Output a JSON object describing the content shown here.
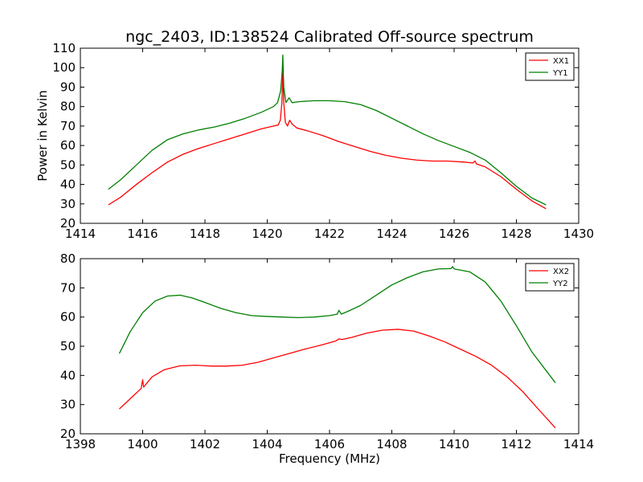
{
  "chart_data": [
    {
      "type": "line",
      "title": "ngc_2403, ID:138524 Calibrated Off-source spectrum",
      "xlabel": "",
      "ylabel": "Power in Kelvin",
      "xlim": [
        1414,
        1430
      ],
      "ylim": [
        20,
        110
      ],
      "xticks": [
        "1414",
        "1416",
        "1418",
        "1420",
        "1422",
        "1424",
        "1426",
        "1428",
        "1430"
      ],
      "yticks": [
        "20",
        "30",
        "40",
        "50",
        "60",
        "70",
        "80",
        "90",
        "100",
        "110"
      ],
      "legend_position": "top-right",
      "grid": false,
      "series": [
        {
          "name": "XX1",
          "color": "#ff0000",
          "points": [
            [
              1414.9,
              29.5
            ],
            [
              1415.3,
              33.5
            ],
            [
              1415.8,
              40
            ],
            [
              1416.3,
              46
            ],
            [
              1416.8,
              51.5
            ],
            [
              1417.3,
              55.5
            ],
            [
              1417.8,
              58.5
            ],
            [
              1418.3,
              61
            ],
            [
              1418.8,
              63.5
            ],
            [
              1419.3,
              66
            ],
            [
              1419.8,
              68.5
            ],
            [
              1420.2,
              70
            ],
            [
              1420.35,
              70.5
            ],
            [
              1420.42,
              73
            ],
            [
              1420.47,
              82
            ],
            [
              1420.5,
              98
            ],
            [
              1420.53,
              82
            ],
            [
              1420.58,
              72
            ],
            [
              1420.65,
              70
            ],
            [
              1420.72,
              73
            ],
            [
              1420.8,
              71
            ],
            [
              1420.95,
              69
            ],
            [
              1421.3,
              67.5
            ],
            [
              1421.8,
              65
            ],
            [
              1422.3,
              62
            ],
            [
              1422.8,
              59.5
            ],
            [
              1423.3,
              57
            ],
            [
              1423.8,
              55
            ],
            [
              1424.3,
              53.5
            ],
            [
              1424.8,
              52.5
            ],
            [
              1425.3,
              52
            ],
            [
              1425.8,
              52
            ],
            [
              1426.3,
              51.5
            ],
            [
              1426.6,
              51
            ],
            [
              1426.67,
              52
            ],
            [
              1426.72,
              50.5
            ],
            [
              1427.0,
              49
            ],
            [
              1427.5,
              44
            ],
            [
              1428.0,
              37.5
            ],
            [
              1428.5,
              31.5
            ],
            [
              1428.95,
              27.5
            ]
          ]
        },
        {
          "name": "YY1",
          "color": "#008000",
          "points": [
            [
              1414.9,
              37.5
            ],
            [
              1415.3,
              42.5
            ],
            [
              1415.8,
              50
            ],
            [
              1416.3,
              57.5
            ],
            [
              1416.8,
              63
            ],
            [
              1417.3,
              66
            ],
            [
              1417.8,
              68
            ],
            [
              1418.3,
              69.5
            ],
            [
              1418.8,
              71.5
            ],
            [
              1419.3,
              74
            ],
            [
              1419.8,
              77
            ],
            [
              1420.2,
              80
            ],
            [
              1420.33,
              82
            ],
            [
              1420.43,
              88
            ],
            [
              1420.48,
              98
            ],
            [
              1420.5,
              106.5
            ],
            [
              1420.53,
              90
            ],
            [
              1420.6,
              82
            ],
            [
              1420.7,
              84.5
            ],
            [
              1420.8,
              82
            ],
            [
              1421.0,
              82.5
            ],
            [
              1421.5,
              83
            ],
            [
              1422.0,
              83
            ],
            [
              1422.5,
              82.5
            ],
            [
              1423.0,
              81
            ],
            [
              1423.5,
              78
            ],
            [
              1424.0,
              74
            ],
            [
              1424.5,
              70
            ],
            [
              1425.0,
              66
            ],
            [
              1425.5,
              62.5
            ],
            [
              1426.0,
              59.5
            ],
            [
              1426.5,
              56.5
            ],
            [
              1427.0,
              52.5
            ],
            [
              1427.5,
              46
            ],
            [
              1428.0,
              39
            ],
            [
              1428.5,
              33
            ],
            [
              1428.95,
              29.5
            ]
          ]
        }
      ]
    },
    {
      "type": "line",
      "title": "",
      "xlabel": "Frequency (MHz)",
      "ylabel": "",
      "xlim": [
        1398,
        1414
      ],
      "ylim": [
        20,
        80
      ],
      "xticks": [
        "1398",
        "1400",
        "1402",
        "1404",
        "1406",
        "1408",
        "1410",
        "1412",
        "1414"
      ],
      "yticks": [
        "20",
        "30",
        "40",
        "50",
        "60",
        "70",
        "80"
      ],
      "legend_position": "top-right",
      "grid": false,
      "series": [
        {
          "name": "XX2",
          "color": "#ff0000",
          "points": [
            [
              1399.25,
              28.5
            ],
            [
              1399.6,
              32
            ],
            [
              1399.95,
              35.5
            ],
            [
              1400.0,
              38.5
            ],
            [
              1400.03,
              36
            ],
            [
              1400.3,
              39.5
            ],
            [
              1400.7,
              42
            ],
            [
              1401.2,
              43.3
            ],
            [
              1401.7,
              43.5
            ],
            [
              1402.2,
              43.2
            ],
            [
              1402.7,
              43.2
            ],
            [
              1403.2,
              43.5
            ],
            [
              1403.7,
              44.5
            ],
            [
              1404.2,
              46
            ],
            [
              1404.7,
              47.5
            ],
            [
              1405.2,
              49
            ],
            [
              1405.7,
              50.3
            ],
            [
              1406.2,
              51.8
            ],
            [
              1406.3,
              52.5
            ],
            [
              1406.4,
              52.3
            ],
            [
              1406.7,
              53
            ],
            [
              1407.2,
              54.5
            ],
            [
              1407.7,
              55.5
            ],
            [
              1408.2,
              55.8
            ],
            [
              1408.7,
              55.2
            ],
            [
              1409.2,
              53.5
            ],
            [
              1409.7,
              51.5
            ],
            [
              1410.2,
              49
            ],
            [
              1410.7,
              46.5
            ],
            [
              1411.2,
              43.5
            ],
            [
              1411.7,
              39.5
            ],
            [
              1412.2,
              34.5
            ],
            [
              1412.7,
              28.5
            ],
            [
              1413.25,
              22
            ]
          ]
        },
        {
          "name": "YY2",
          "color": "#008000",
          "points": [
            [
              1399.25,
              47.5
            ],
            [
              1399.6,
              55
            ],
            [
              1400.0,
              61.5
            ],
            [
              1400.4,
              65.5
            ],
            [
              1400.8,
              67.2
            ],
            [
              1401.2,
              67.5
            ],
            [
              1401.6,
              66.5
            ],
            [
              1402.0,
              65
            ],
            [
              1402.5,
              63
            ],
            [
              1403.0,
              61.5
            ],
            [
              1403.5,
              60.5
            ],
            [
              1404.0,
              60.2
            ],
            [
              1404.5,
              60
            ],
            [
              1405.0,
              59.8
            ],
            [
              1405.5,
              60
            ],
            [
              1406.0,
              60.5
            ],
            [
              1406.25,
              61
            ],
            [
              1406.3,
              62.3
            ],
            [
              1406.38,
              61
            ],
            [
              1406.6,
              62
            ],
            [
              1407.0,
              64
            ],
            [
              1407.5,
              67.5
            ],
            [
              1408.0,
              71
            ],
            [
              1408.5,
              73.5
            ],
            [
              1409.0,
              75.5
            ],
            [
              1409.5,
              76.5
            ],
            [
              1409.9,
              76.6
            ],
            [
              1409.95,
              77.3
            ],
            [
              1410.0,
              76.5
            ],
            [
              1410.5,
              75.5
            ],
            [
              1411.0,
              72
            ],
            [
              1411.5,
              65.5
            ],
            [
              1412.0,
              57
            ],
            [
              1412.5,
              48
            ],
            [
              1413.0,
              41
            ],
            [
              1413.25,
              37.5
            ]
          ]
        }
      ]
    }
  ]
}
